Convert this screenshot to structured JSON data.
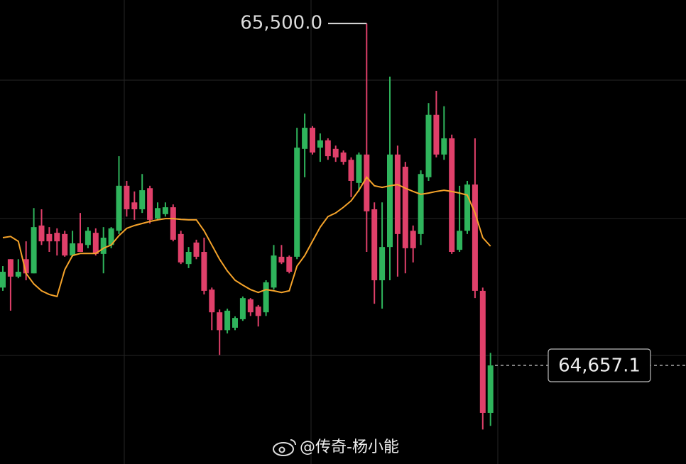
{
  "chart_data": {
    "type": "candlestick",
    "open": [
      64849,
      64919,
      64876,
      64919,
      64884,
      65002,
      64981,
      64984,
      64981,
      64928,
      64958,
      64954,
      64984,
      64932,
      64954,
      64989,
      65100,
      65059,
      65042,
      65094,
      65019,
      65030,
      65047,
      64981,
      64907,
      64960,
      64937,
      64844,
      64788,
      64744,
      64750,
      64771,
      64820,
      64802,
      64788,
      64849,
      64925,
      64925,
      64925,
      65191,
      65243,
      65194,
      65212,
      65191,
      65182,
      65164,
      65107,
      65177,
      65042,
      64867,
      64949,
      65177,
      65147,
      64989,
      64981,
      65121,
      65275,
      65177,
      65217,
      64942,
      64989,
      65103,
      64841,
      64540
    ],
    "high": [
      64902,
      64919,
      64919,
      64963,
      65045,
      65042,
      64998,
      64995,
      64989,
      64989,
      65033,
      64998,
      64995,
      64998,
      64998,
      65173,
      65112,
      65086,
      65129,
      65100,
      65059,
      65059,
      65054,
      64989,
      64949,
      64967,
      64972,
      64849,
      64795,
      64797,
      64778,
      64827,
      64823,
      64806,
      64867,
      64954,
      64954,
      64928,
      65243,
      65278,
      65247,
      65229,
      65217,
      65199,
      65187,
      65170,
      65182,
      65500,
      65059,
      65059,
      65369,
      65199,
      65159,
      65002,
      65138,
      65304,
      65334,
      65296,
      65226,
      65100,
      65112,
      65217,
      64849,
      64688
    ],
    "low": [
      64841,
      64792,
      64872,
      64867,
      64884,
      64954,
      64937,
      64928,
      64925,
      64925,
      64937,
      64946,
      64928,
      64884,
      64946,
      64981,
      65024,
      65016,
      65033,
      65007,
      65016,
      65024,
      64963,
      64907,
      64897,
      64919,
      64832,
      64744,
      64683,
      64736,
      64744,
      64767,
      64779,
      64753,
      64779,
      64844,
      64907,
      64884,
      64919,
      65121,
      65177,
      65159,
      65164,
      65159,
      65152,
      65072,
      65086,
      64937,
      64809,
      64797,
      64867,
      64876,
      64884,
      64911,
      64954,
      65112,
      65170,
      65164,
      64932,
      64937,
      64981,
      64823,
      64499,
      64508
    ],
    "close": [
      64888,
      64876,
      64888,
      64884,
      64998,
      64963,
      64963,
      64963,
      64928,
      64958,
      64937,
      64989,
      64932,
      64972,
      64995,
      65100,
      65042,
      65042,
      65089,
      65016,
      65045,
      65047,
      64967,
      64911,
      64937,
      64925,
      64841,
      64788,
      64744,
      64792,
      64774,
      64823,
      64788,
      64779,
      64862,
      64928,
      64911,
      64888,
      65194,
      65243,
      65182,
      65212,
      65173,
      65170,
      65159,
      65112,
      65177,
      65037,
      64867,
      64949,
      65177,
      64981,
      64946,
      64946,
      65129,
      65275,
      65177,
      65217,
      64937,
      64989,
      65103,
      64841,
      64540,
      64657.1
    ],
    "up_color": "#2fb45c",
    "down_color": "#e0406a",
    "ma": {
      "color": "#f5a32a",
      "values": [
        64972,
        64975,
        64963,
        64884,
        64858,
        64841,
        64832,
        64827,
        64893,
        64928,
        64933,
        64933,
        64933,
        64946,
        64954,
        64977,
        64995,
        65002,
        65007,
        65012,
        65016,
        65019,
        65019,
        65017,
        65016,
        65016,
        64989,
        64954,
        64919,
        64890,
        64867,
        64855,
        64844,
        64837,
        64844,
        64841,
        64837,
        64841,
        64902,
        64928,
        64963,
        64998,
        65024,
        65033,
        65047,
        65063,
        65089,
        65121,
        65100,
        65096,
        65100,
        65103,
        65094,
        65086,
        65079,
        65082,
        65086,
        65089,
        65086,
        65082,
        65077,
        65033,
        64972,
        64951
      ]
    },
    "ylim": [
      64414,
      65558
    ],
    "high_marker": {
      "value": 65500,
      "label": "65,500.0"
    },
    "last_price": {
      "value": 64657.1,
      "label": "64,657.1"
    }
  },
  "watermark": "@传奇-杨小能"
}
